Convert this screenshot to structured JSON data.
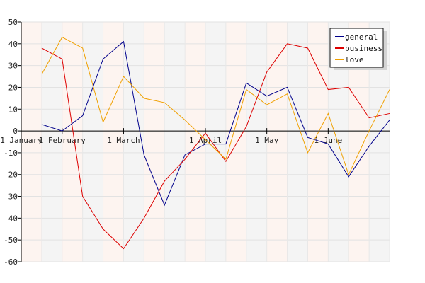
{
  "chart_data": {
    "type": "line",
    "title": "",
    "xlabel": "",
    "ylabel": "",
    "ylim": [
      -60,
      50
    ],
    "y_ticks": [
      50,
      40,
      30,
      20,
      10,
      0,
      -10,
      -20,
      -30,
      -40,
      -50,
      -60
    ],
    "x_tick_labels": [
      "1 January",
      "1 February",
      "1 March",
      "1 April",
      "1 May",
      "1 June"
    ],
    "x_tick_index": [
      0,
      2,
      5,
      9,
      12,
      15
    ],
    "point_count": 18,
    "grid": true,
    "legend_position": "top-right",
    "series": [
      {
        "name": "general",
        "color": "#00008b",
        "values": [
          3,
          0,
          7,
          33,
          41,
          -11,
          -34,
          -11,
          -6,
          -6,
          22,
          16,
          20,
          -3,
          -6,
          -21,
          -7,
          5
        ]
      },
      {
        "name": "business",
        "color": "#dd0000",
        "values": [
          38,
          33,
          -30,
          -45,
          -54,
          -40,
          -23,
          -13,
          -1,
          -14,
          2,
          27,
          40,
          38,
          19,
          20,
          6,
          8
        ]
      },
      {
        "name": "love",
        "color": "#f0a000",
        "values": [
          26,
          43,
          38,
          4,
          25,
          15,
          13,
          5,
          -4,
          -13,
          19,
          12,
          17,
          -10,
          8,
          -20,
          0,
          19
        ]
      }
    ]
  }
}
